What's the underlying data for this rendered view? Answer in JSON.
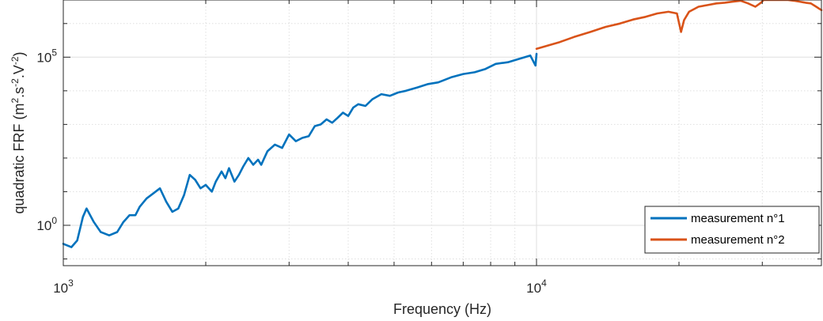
{
  "chart_data": {
    "type": "line",
    "xlabel": "Frequency (Hz)",
    "ylabel_parts": [
      "quadratic FRF (m",
      "2",
      ".s",
      "-2",
      ".V",
      "-2",
      ")"
    ],
    "x_scale": "log",
    "y_scale": "log",
    "xlim": [
      1000,
      40000
    ],
    "ylim_log10": [
      -1.2,
      6.7
    ],
    "x_ticks": [
      {
        "value": 1000,
        "base": "10",
        "exp": "3"
      },
      {
        "value": 10000,
        "base": "10",
        "exp": "4"
      }
    ],
    "y_ticks": [
      {
        "value": 1,
        "base": "10",
        "exp": "0"
      },
      {
        "value": 100000,
        "base": "10",
        "exp": "5"
      }
    ],
    "grid": true,
    "legend_position": "bottom-right",
    "colors": {
      "series1": "#0072BD",
      "series2": "#D95319",
      "grid": "#dfdfdf",
      "axis": "#262626"
    },
    "series": [
      {
        "name": "measurement n°1",
        "x": [
          1000,
          1040,
          1070,
          1100,
          1120,
          1160,
          1200,
          1250,
          1300,
          1340,
          1380,
          1420,
          1450,
          1500,
          1550,
          1600,
          1650,
          1700,
          1750,
          1800,
          1850,
          1900,
          1950,
          2000,
          2060,
          2100,
          2160,
          2200,
          2240,
          2300,
          2350,
          2400,
          2460,
          2520,
          2580,
          2620,
          2700,
          2800,
          2900,
          3000,
          3100,
          3200,
          3300,
          3400,
          3500,
          3600,
          3700,
          3800,
          3900,
          4000,
          4100,
          4200,
          4350,
          4500,
          4700,
          4900,
          5100,
          5300,
          5600,
          5900,
          6200,
          6600,
          7000,
          7400,
          7800,
          8200,
          8700,
          9200,
          9700,
          9950,
          10000
        ],
        "y_log10": [
          -0.55,
          -0.65,
          -0.45,
          0.25,
          0.5,
          0.1,
          -0.2,
          -0.3,
          -0.2,
          0.1,
          0.3,
          0.3,
          0.55,
          0.8,
          0.95,
          1.1,
          0.7,
          0.4,
          0.5,
          0.9,
          1.5,
          1.35,
          1.1,
          1.2,
          1.0,
          1.3,
          1.6,
          1.4,
          1.7,
          1.3,
          1.5,
          1.75,
          2.0,
          1.8,
          1.95,
          1.8,
          2.2,
          2.4,
          2.3,
          2.7,
          2.5,
          2.6,
          2.65,
          2.95,
          3.0,
          3.15,
          3.05,
          3.2,
          3.35,
          3.25,
          3.5,
          3.6,
          3.55,
          3.75,
          3.9,
          3.85,
          3.95,
          4.0,
          4.1,
          4.2,
          4.25,
          4.4,
          4.5,
          4.55,
          4.65,
          4.8,
          4.85,
          4.95,
          5.05,
          4.75,
          5.1
        ]
      },
      {
        "name": "measurement n°2",
        "x": [
          10000,
          10600,
          11200,
          12000,
          13000,
          14000,
          15000,
          16000,
          17000,
          18000,
          19000,
          19800,
          20200,
          20500,
          21000,
          22000,
          23000,
          24000,
          25000,
          26000,
          27000,
          28000,
          29000,
          29800,
          30200,
          31000,
          32000,
          33000,
          34000,
          35000,
          36000,
          37000,
          38000,
          39000,
          40000
        ],
        "y_log10": [
          5.25,
          5.35,
          5.45,
          5.6,
          5.75,
          5.9,
          6.0,
          6.12,
          6.2,
          6.3,
          6.35,
          6.3,
          5.75,
          6.1,
          6.35,
          6.5,
          6.55,
          6.6,
          6.62,
          6.65,
          6.68,
          6.6,
          6.5,
          6.62,
          6.8,
          6.82,
          6.78,
          6.82,
          6.72,
          6.68,
          6.65,
          6.62,
          6.6,
          6.5,
          6.4
        ]
      }
    ]
  }
}
